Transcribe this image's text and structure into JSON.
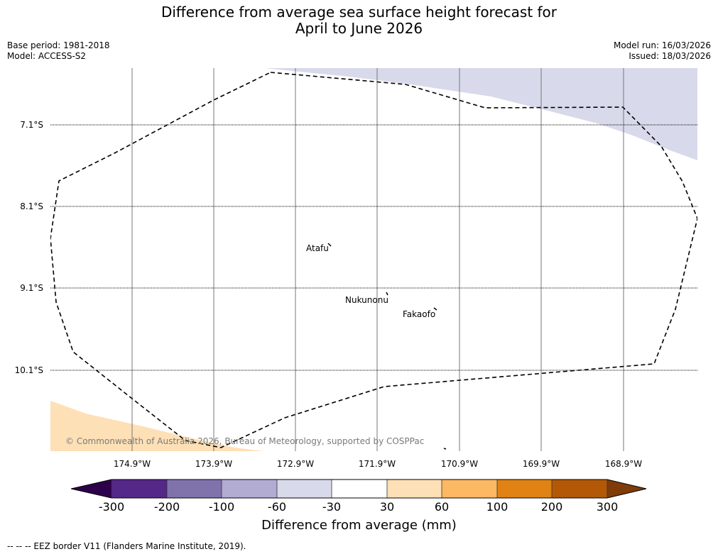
{
  "title": {
    "line1": "Difference from average sea surface height forecast for",
    "line2": "April to June 2026"
  },
  "meta": {
    "base_period": "Base period: 1981-2018",
    "model": "Model: ACCESS-S2",
    "model_run": "Model run: 16/03/2026",
    "issued": "Issued: 18/03/2026"
  },
  "lat_labels": [
    "7.1°S",
    "8.1°S",
    "9.1°S",
    "10.1°S"
  ],
  "lon_labels": [
    "174.9°W",
    "173.9°W",
    "172.9°W",
    "171.9°W",
    "170.9°W",
    "169.9°W",
    "168.9°W"
  ],
  "places": {
    "atafu": "Atafu",
    "nukunonu": "Nukunonu",
    "fakaofo": "Fakaofo"
  },
  "copyright": "© Commonwealth of Australia 2026, Bureau of Meteorology, supported by COSPPac",
  "colorbar": {
    "title": "Difference from average (mm)",
    "ticks": [
      "-300",
      "-200",
      "-100",
      "-60",
      "-30",
      "30",
      "60",
      "100",
      "200",
      "300"
    ],
    "colors": {
      "below": "#2d004b",
      "c1": "#542788",
      "c2": "#8073ac",
      "c3": "#b2abd2",
      "c4": "#d8daeb",
      "c5": "#ffffff",
      "c6": "#fee0b6",
      "c7": "#fdb863",
      "c8": "#e08214",
      "c9": "#b35806",
      "above": "#7f3b08"
    }
  },
  "legend_note": "--  --  -- EEZ border V11 (Flanders Marine Institute, 2019)."
}
